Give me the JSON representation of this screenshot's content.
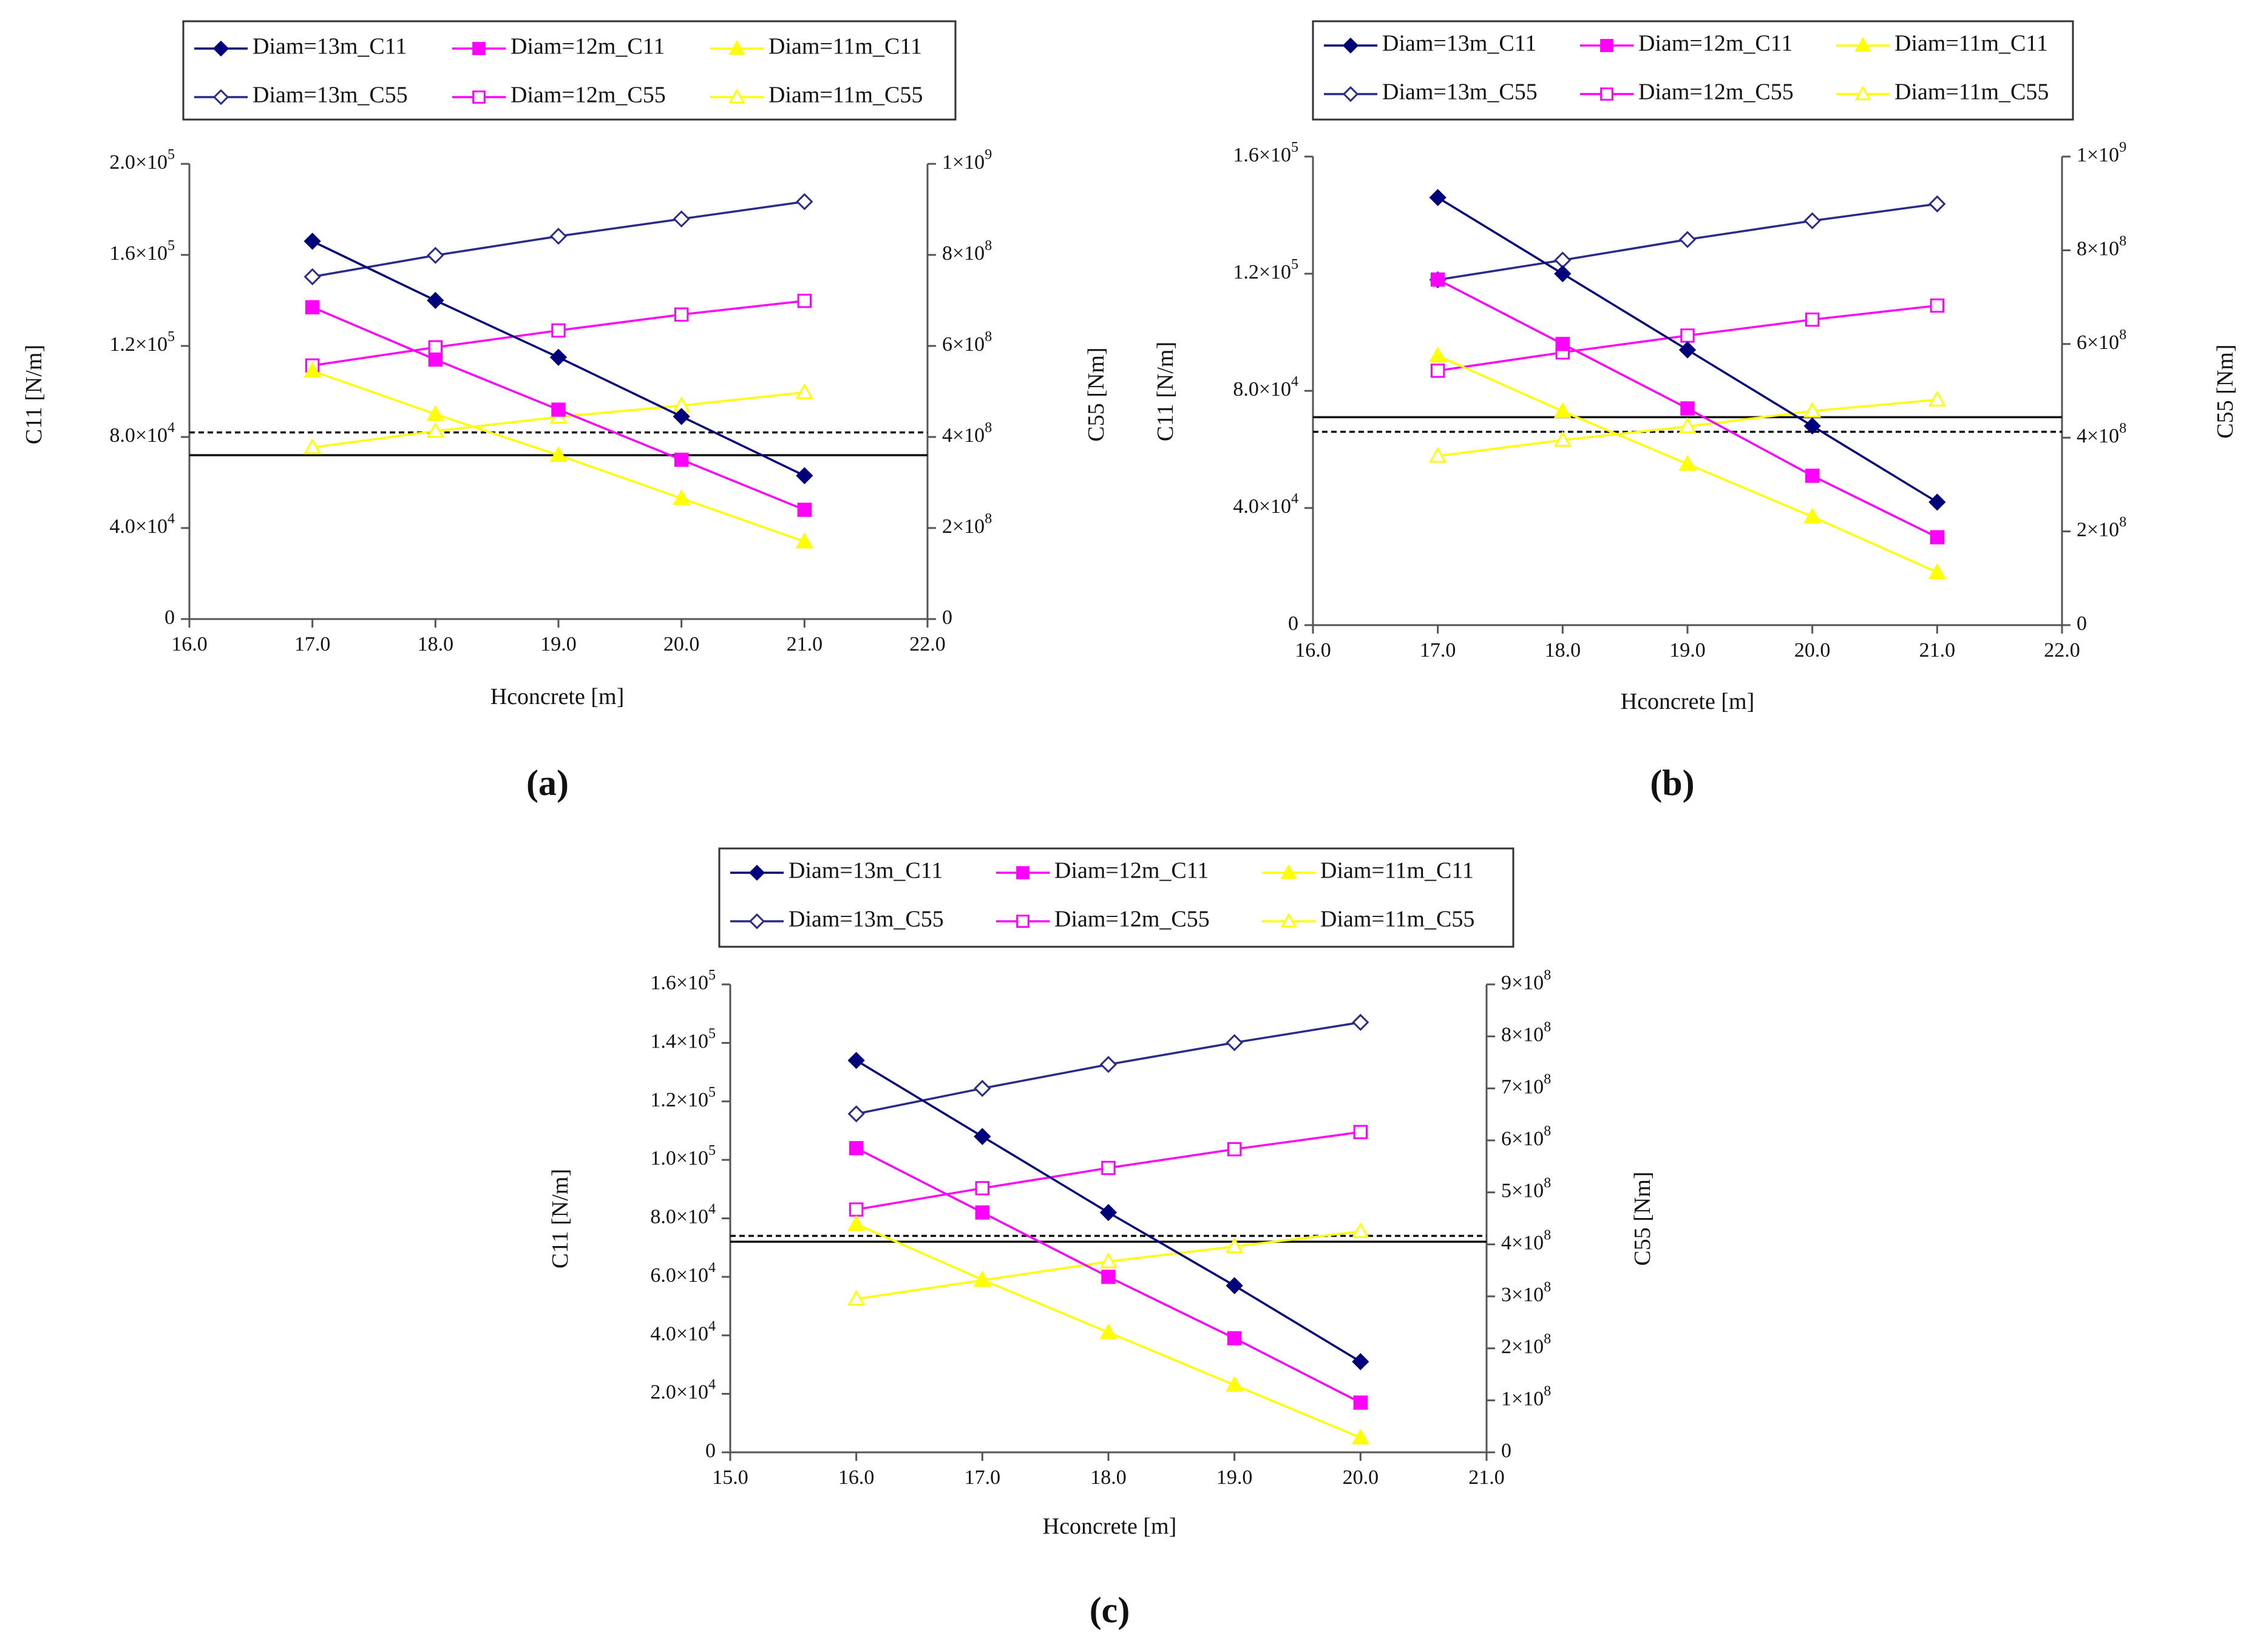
{
  "chart_data": [
    {
      "type": "line",
      "panel_label": "(a)",
      "xlabel": "Hconcrete [m]",
      "ylabel_left": "C11 [N/m]",
      "ylabel_right": "C55 [Nm]",
      "xlim": [
        16,
        22
      ],
      "xticks": [
        "16.0",
        "17.0",
        "18.0",
        "19.0",
        "20.0",
        "21.0",
        "22.0"
      ],
      "ylim_left": [
        0,
        200000
      ],
      "yticks_left": [
        {
          "value": 0,
          "mant": "0",
          "exp": ""
        },
        {
          "value": 40000,
          "mant": "4.0×10",
          "exp": "4"
        },
        {
          "value": 80000,
          "mant": "8.0×10",
          "exp": "4"
        },
        {
          "value": 120000,
          "mant": "1.2×10",
          "exp": "5"
        },
        {
          "value": 160000,
          "mant": "1.6×10",
          "exp": "5"
        },
        {
          "value": 200000,
          "mant": "2.0×10",
          "exp": "5"
        }
      ],
      "ylim_right": [
        0,
        1000000000
      ],
      "yticks_right": [
        {
          "value": 0,
          "mant": "0",
          "exp": ""
        },
        {
          "value": 200000000,
          "mant": "2×10",
          "exp": "8"
        },
        {
          "value": 400000000,
          "mant": "4×10",
          "exp": "8"
        },
        {
          "value": 600000000,
          "mant": "6×10",
          "exp": "8"
        },
        {
          "value": 800000000,
          "mant": "8×10",
          "exp": "8"
        },
        {
          "value": 1000000000,
          "mant": "1×10",
          "exp": "9"
        }
      ],
      "x": [
        17,
        18,
        19,
        20,
        21
      ],
      "series": [
        {
          "name": "Diam=13m_C11",
          "axis": "left",
          "color": "#00007a",
          "marker": "diamond",
          "filled": true,
          "values": [
            166000,
            140000,
            115000,
            89000,
            63000
          ]
        },
        {
          "name": "Diam=12m_C11",
          "axis": "left",
          "color": "#ff00ff",
          "marker": "square",
          "filled": true,
          "values": [
            137000,
            114000,
            92000,
            70000,
            48000
          ]
        },
        {
          "name": "Diam=11m_C11",
          "axis": "left",
          "color": "#ffff00",
          "marker": "triangle",
          "filled": true,
          "values": [
            109000,
            90000,
            72000,
            53000,
            34000
          ]
        },
        {
          "name": "Diam=13m_C55",
          "axis": "right",
          "color": "#2a2a8c",
          "marker": "diamond",
          "filled": false,
          "values": [
            752000000,
            799000000,
            841000000,
            879000000,
            917000000
          ]
        },
        {
          "name": "Diam=12m_C55",
          "axis": "right",
          "color": "#ff00ff",
          "marker": "square",
          "filled": false,
          "values": [
            557000000,
            597000000,
            634000000,
            669000000,
            699000000
          ]
        },
        {
          "name": "Diam=11m_C55",
          "axis": "right",
          "color": "#ffff00",
          "marker": "triangle",
          "filled": false,
          "values": [
            377000000,
            413000000,
            444000000,
            469000000,
            498000000
          ]
        }
      ],
      "reference_lines": [
        {
          "name": "solid",
          "axis": "left",
          "value": 72000
        },
        {
          "name": "dashed",
          "axis": "left",
          "value": 82000
        }
      ]
    },
    {
      "type": "line",
      "panel_label": "(b)",
      "xlabel": "Hconcrete [m]",
      "ylabel_left": "C11 [N/m]",
      "ylabel_right": "C55 [Nm]",
      "xlim": [
        16,
        22
      ],
      "xticks": [
        "16.0",
        "17.0",
        "18.0",
        "19.0",
        "20.0",
        "21.0",
        "22.0"
      ],
      "ylim_left": [
        0,
        160000
      ],
      "yticks_left": [
        {
          "value": 0,
          "mant": "0",
          "exp": ""
        },
        {
          "value": 40000,
          "mant": "4.0×10",
          "exp": "4"
        },
        {
          "value": 80000,
          "mant": "8.0×10",
          "exp": "4"
        },
        {
          "value": 120000,
          "mant": "1.2×10",
          "exp": "5"
        },
        {
          "value": 160000,
          "mant": "1.6×10",
          "exp": "5"
        }
      ],
      "ylim_right": [
        0,
        1000000000
      ],
      "yticks_right": [
        {
          "value": 0,
          "mant": "0",
          "exp": ""
        },
        {
          "value": 200000000,
          "mant": "2×10",
          "exp": "8"
        },
        {
          "value": 400000000,
          "mant": "4×10",
          "exp": "8"
        },
        {
          "value": 600000000,
          "mant": "6×10",
          "exp": "8"
        },
        {
          "value": 800000000,
          "mant": "8×10",
          "exp": "8"
        },
        {
          "value": 1000000000,
          "mant": "1×10",
          "exp": "9"
        }
      ],
      "x": [
        17,
        18,
        19,
        20,
        21
      ],
      "series": [
        {
          "name": "Diam=13m_C11",
          "axis": "left",
          "color": "#00007a",
          "marker": "diamond",
          "filled": true,
          "values": [
            146000,
            120000,
            94000,
            68000,
            42000
          ]
        },
        {
          "name": "Diam=12m_C11",
          "axis": "left",
          "color": "#ff00ff",
          "marker": "square",
          "filled": true,
          "values": [
            118000,
            96000,
            74000,
            51000,
            30000
          ]
        },
        {
          "name": "Diam=11m_C11",
          "axis": "left",
          "color": "#ffff00",
          "marker": "triangle",
          "filled": true,
          "values": [
            92000,
            73000,
            55000,
            37000,
            18000
          ]
        },
        {
          "name": "Diam=13m_C55",
          "axis": "right",
          "color": "#2a2a8c",
          "marker": "diamond",
          "filled": false,
          "values": [
            737000000,
            779000000,
            823000000,
            863000000,
            899000000
          ]
        },
        {
          "name": "Diam=12m_C55",
          "axis": "right",
          "color": "#ff00ff",
          "marker": "square",
          "filled": false,
          "values": [
            543000000,
            582000000,
            618000000,
            652000000,
            682000000
          ]
        },
        {
          "name": "Diam=11m_C55",
          "axis": "right",
          "color": "#ffff00",
          "marker": "triangle",
          "filled": false,
          "values": [
            361000000,
            395000000,
            424000000,
            457000000,
            481000000
          ]
        }
      ],
      "reference_lines": [
        {
          "name": "solid",
          "axis": "left",
          "value": 71000
        },
        {
          "name": "dashed",
          "axis": "left",
          "value": 66000
        }
      ]
    },
    {
      "type": "line",
      "panel_label": "(c)",
      "xlabel": "Hconcrete [m]",
      "ylabel_left": "C11 [N/m]",
      "ylabel_right": "C55 [Nm]",
      "xlim": [
        15,
        21
      ],
      "xticks": [
        "15.0",
        "16.0",
        "17.0",
        "18.0",
        "19.0",
        "20.0",
        "21.0"
      ],
      "ylim_left": [
        0,
        160000
      ],
      "yticks_left": [
        {
          "value": 0,
          "mant": "0",
          "exp": ""
        },
        {
          "value": 20000,
          "mant": "2.0×10",
          "exp": "4"
        },
        {
          "value": 40000,
          "mant": "4.0×10",
          "exp": "4"
        },
        {
          "value": 60000,
          "mant": "6.0×10",
          "exp": "4"
        },
        {
          "value": 80000,
          "mant": "8.0×10",
          "exp": "4"
        },
        {
          "value": 100000,
          "mant": "1.0×10",
          "exp": "5"
        },
        {
          "value": 120000,
          "mant": "1.2×10",
          "exp": "5"
        },
        {
          "value": 140000,
          "mant": "1.4×10",
          "exp": "5"
        },
        {
          "value": 160000,
          "mant": "1.6×10",
          "exp": "5"
        }
      ],
      "ylim_right": [
        0,
        900000000
      ],
      "yticks_right": [
        {
          "value": 0,
          "mant": "0",
          "exp": ""
        },
        {
          "value": 100000000,
          "mant": "1×10",
          "exp": "8"
        },
        {
          "value": 200000000,
          "mant": "2×10",
          "exp": "8"
        },
        {
          "value": 300000000,
          "mant": "3×10",
          "exp": "8"
        },
        {
          "value": 400000000,
          "mant": "4×10",
          "exp": "8"
        },
        {
          "value": 500000000,
          "mant": "5×10",
          "exp": "8"
        },
        {
          "value": 600000000,
          "mant": "6×10",
          "exp": "8"
        },
        {
          "value": 700000000,
          "mant": "7×10",
          "exp": "8"
        },
        {
          "value": 800000000,
          "mant": "8×10",
          "exp": "8"
        },
        {
          "value": 900000000,
          "mant": "9×10",
          "exp": "8"
        }
      ],
      "x": [
        16,
        17,
        18,
        19,
        20
      ],
      "series": [
        {
          "name": "Diam=13m_C11",
          "axis": "left",
          "color": "#00007a",
          "marker": "diamond",
          "filled": true,
          "values": [
            134000,
            108000,
            82000,
            57000,
            31000
          ]
        },
        {
          "name": "Diam=12m_C11",
          "axis": "left",
          "color": "#ff00ff",
          "marker": "square",
          "filled": true,
          "values": [
            104000,
            82000,
            60000,
            39000,
            17000
          ]
        },
        {
          "name": "Diam=11m_C11",
          "axis": "left",
          "color": "#ffff00",
          "marker": "triangle",
          "filled": true,
          "values": [
            78000,
            59000,
            41000,
            23000,
            5000
          ]
        },
        {
          "name": "Diam=13m_C55",
          "axis": "right",
          "color": "#2a2a8c",
          "marker": "diamond",
          "filled": false,
          "values": [
            651000000,
            700000000,
            746000000,
            788000000,
            827000000
          ]
        },
        {
          "name": "Diam=12m_C55",
          "axis": "right",
          "color": "#ff00ff",
          "marker": "square",
          "filled": false,
          "values": [
            467000000,
            508000000,
            547000000,
            583000000,
            616000000
          ]
        },
        {
          "name": "Diam=11m_C55",
          "axis": "right",
          "color": "#ffff00",
          "marker": "triangle",
          "filled": false,
          "values": [
            295000000,
            331000000,
            367000000,
            396000000,
            425000000
          ]
        }
      ],
      "reference_lines": [
        {
          "name": "solid",
          "axis": "left",
          "value": 72000
        },
        {
          "name": "dashed",
          "axis": "left",
          "value": 74000
        }
      ]
    }
  ]
}
